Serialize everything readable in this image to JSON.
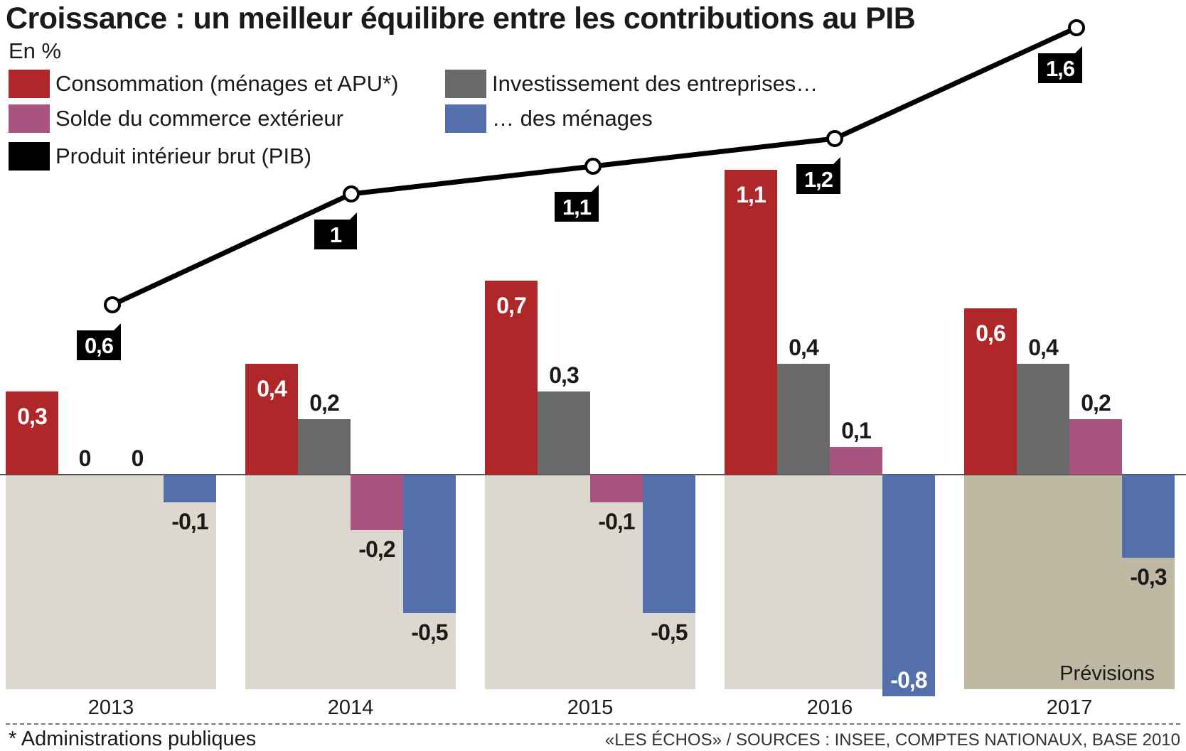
{
  "title": "Croissance : un meilleur équilibre entre les contributions au PIB",
  "subtitle": "En %",
  "legend": [
    {
      "key": "consommation",
      "label": "Consommation (ménages et APU*)",
      "color": "#b0272a"
    },
    {
      "key": "invest_entreprises",
      "label": "Investissement des entreprises…",
      "color": "#696969"
    },
    {
      "key": "commerce",
      "label": "Solde du commerce extérieur",
      "color": "#a9547e"
    },
    {
      "key": "invest_menages",
      "label": "… des ménages",
      "color": "#5370ad"
    },
    {
      "key": "pib",
      "label": "Produit intérieur brut (PIB)",
      "color": "#000000"
    }
  ],
  "chart_data": {
    "type": "bar",
    "categories": [
      "2013",
      "2014",
      "2015",
      "2016",
      "2017"
    ],
    "series": [
      {
        "name": "Consommation (ménages et APU*)",
        "color": "#b0272a",
        "values": [
          0.3,
          0.4,
          0.7,
          1.1,
          0.6
        ],
        "labels": [
          "0,3",
          "0,4",
          "0,7",
          "1,1",
          "0,6"
        ]
      },
      {
        "name": "Investissement des entreprises…",
        "color": "#696969",
        "values": [
          0,
          0.2,
          0.3,
          0.4,
          0.4
        ],
        "labels": [
          "0",
          "0,2",
          "0,3",
          "0,4",
          "0,4"
        ]
      },
      {
        "name": "Solde du commerce extérieur",
        "color": "#a9547e",
        "values": [
          0,
          -0.2,
          -0.1,
          0.1,
          0.2
        ],
        "labels": [
          "0",
          "-0,2",
          "-0,1",
          "0,1",
          "0,2"
        ]
      },
      {
        "name": "… des ménages",
        "color": "#5370ad",
        "values": [
          -0.1,
          -0.5,
          -0.5,
          -0.8,
          -0.3
        ],
        "labels": [
          "-0,1",
          "-0,5",
          "-0,5",
          "-0,8",
          "-0,3"
        ]
      }
    ],
    "line": {
      "name": "Produit intérieur brut (PIB)",
      "color": "#000000",
      "values": [
        0.6,
        1.0,
        1.1,
        1.2,
        1.6
      ],
      "labels": [
        "0,6",
        "1",
        "1,1",
        "1,2",
        "1,6"
      ]
    },
    "ylim": [
      -0.8,
      1.6
    ],
    "forecast_label": "Prévisions",
    "forecast_category": "2017"
  },
  "footer": {
    "note": "* Administrations publiques",
    "source": "«LES ÉCHOS»  / SOURCES : INSEE, COMPTES NATIONAUX, BASE 2010"
  }
}
